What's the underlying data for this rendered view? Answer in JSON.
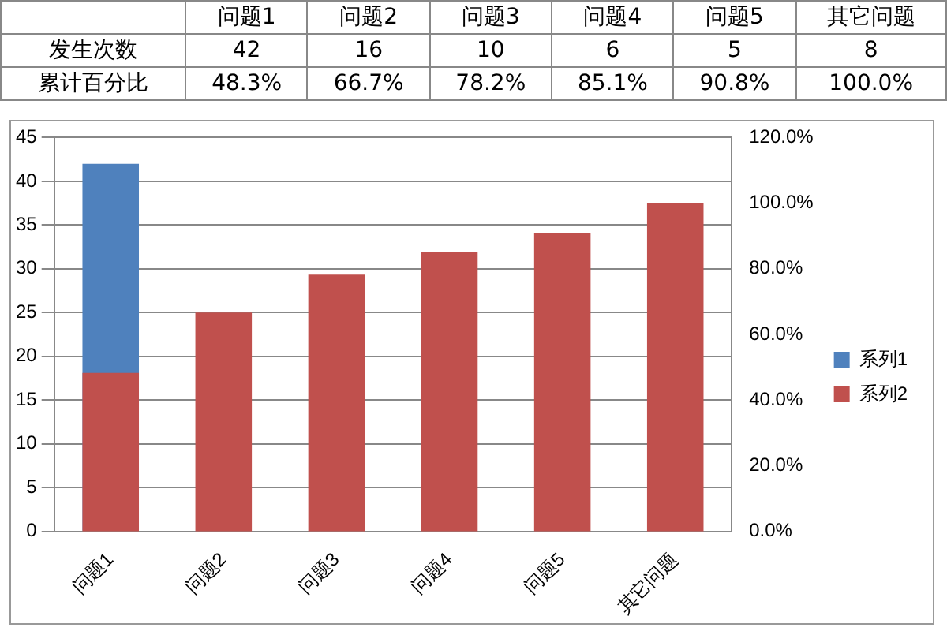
{
  "chart_data": [
    {
      "type": "other",
      "categories": [
        "问题1",
        "问题2",
        "问题3",
        "问题4",
        "问题5",
        "其它问题"
      ],
      "y_categories": [
        "发生次数",
        "累计百分比"
      ],
      "cell_labels": [
        [
          "42",
          "16",
          "10",
          "6",
          "5",
          "8"
        ],
        [
          "48.3%",
          "66.7%",
          "78.2%",
          "85.1%",
          "90.8%",
          "100.0%"
        ]
      ]
    },
    {
      "type": "bar",
      "categories": [
        "问题1",
        "问题2",
        "问题3",
        "问题4",
        "问题5",
        "其它问题"
      ],
      "series": [
        {
          "name": "系列1",
          "color": "#4f81bd",
          "values": [
            42,
            null,
            null,
            null,
            null,
            null
          ]
        },
        {
          "name": "系列2",
          "color": "#c0504d",
          "axis": "y2",
          "values": [
            48.3,
            66.7,
            78.2,
            85.1,
            90.8,
            100.0
          ]
        }
      ],
      "ylim": [
        0,
        45
      ],
      "yticks": [
        0,
        5,
        10,
        15,
        20,
        25,
        30,
        35,
        40,
        45
      ],
      "y2lim": [
        0,
        120
      ],
      "y2ticks": [
        {
          "value": 0,
          "label": "0.0%"
        },
        {
          "value": 20,
          "label": "20.0%"
        },
        {
          "value": 40,
          "label": "40.0%"
        },
        {
          "value": 60,
          "label": "60.0%"
        },
        {
          "value": 80,
          "label": "80.0%"
        },
        {
          "value": 100,
          "label": "100.0%"
        },
        {
          "value": 120,
          "label": "120.0%"
        }
      ],
      "grid": "y",
      "legend": "right"
    }
  ]
}
